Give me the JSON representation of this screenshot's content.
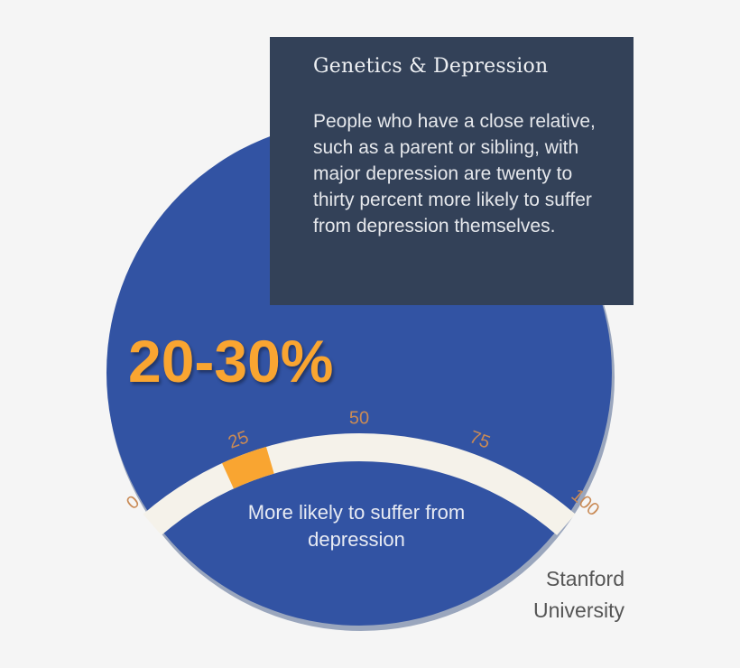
{
  "card": {
    "title": "Genetics & Depression",
    "body": "People who have a close relative, such as a parent or sibling, with major depression are twenty to thirty percent more likely to suffer from depression themselves."
  },
  "headline": "20-30%",
  "gauge": {
    "ticks": [
      "0",
      "25",
      "50",
      "75",
      "100"
    ],
    "min": 0,
    "max": 100,
    "highlight_range": [
      20,
      30
    ]
  },
  "caption": "More likely to suffer from depression",
  "source": "Stanford University",
  "colors": {
    "circle": "#3253a3",
    "card": "#334158",
    "accent": "#f9a531",
    "band": "#f5f2ea",
    "tick_text": "#c98a55"
  }
}
